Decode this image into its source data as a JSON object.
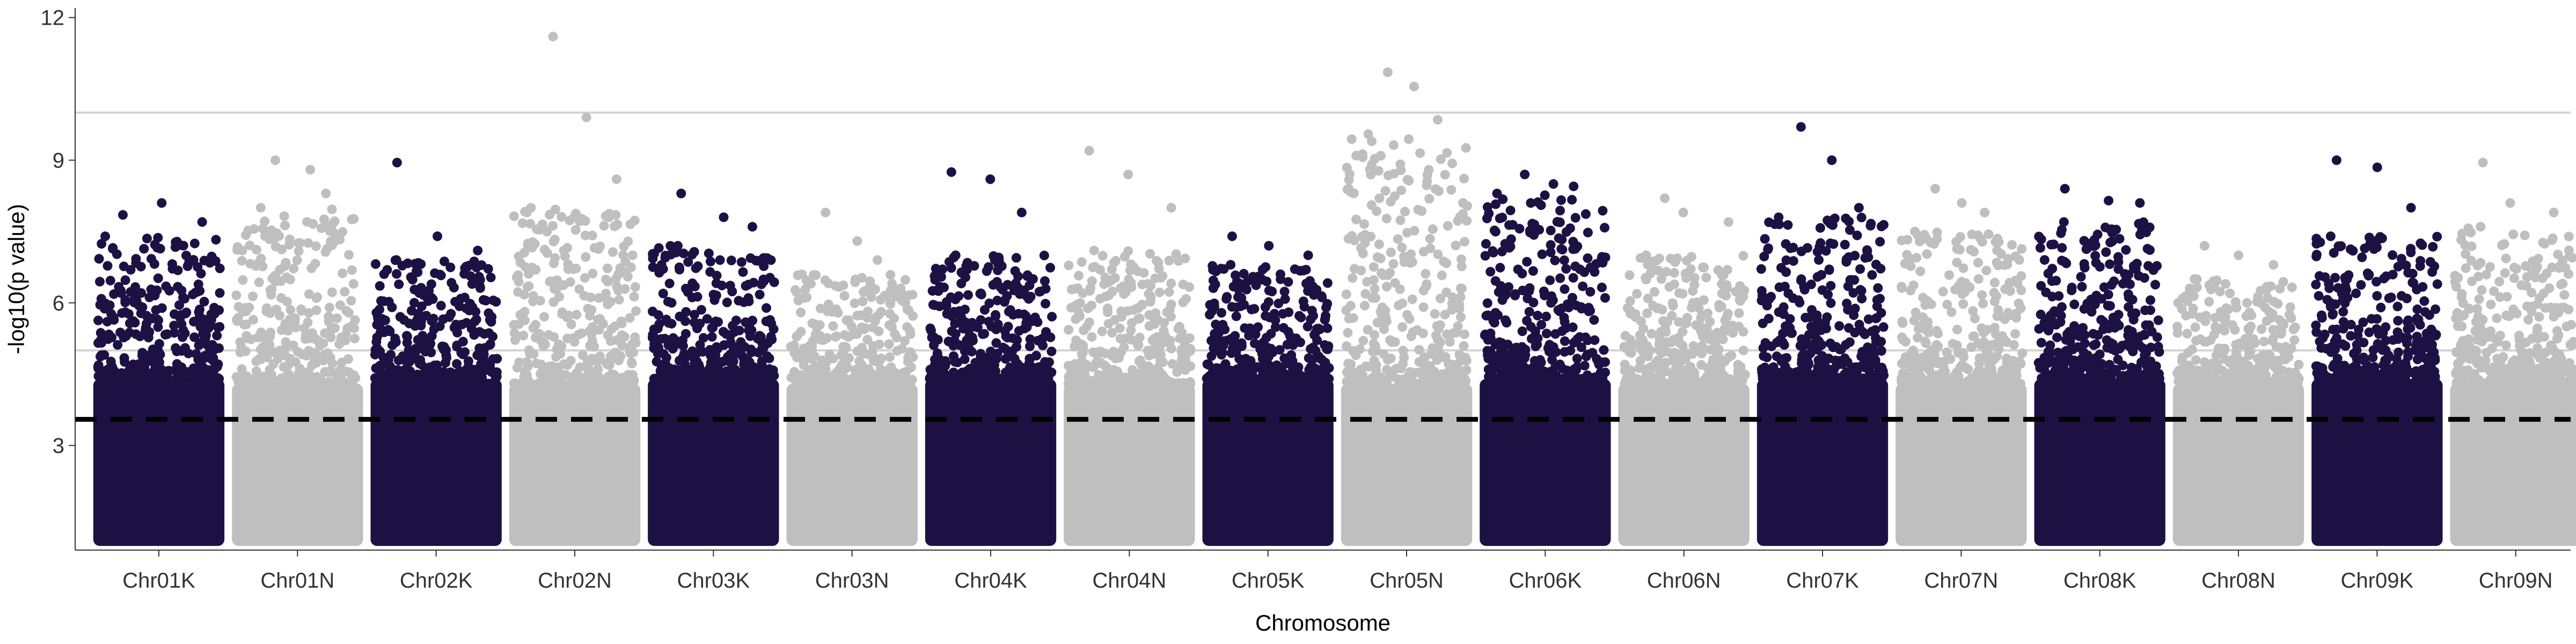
{
  "chart_data": {
    "type": "scatter",
    "subtype": "manhattan",
    "xlabel": "Chromosome",
    "ylabel": "-log10(p value)",
    "ylim": [
      0.8,
      12.2
    ],
    "yticks": [
      "3",
      "6",
      "9",
      "12"
    ],
    "categories": [
      "Chr01K",
      "Chr01N",
      "Chr02K",
      "Chr02N",
      "Chr03K",
      "Chr03N",
      "Chr04K",
      "Chr04N",
      "Chr05K",
      "Chr05N",
      "Chr06K",
      "Chr06N",
      "Chr07K",
      "Chr07N",
      "Chr08K",
      "Chr08N",
      "Chr09K",
      "Chr09N"
    ],
    "point_floor": 1.0,
    "colors": {
      "K": "#1d1144",
      "N": "#bfbfbf",
      "hline": "#d3d3d3",
      "threshold": "#000000"
    },
    "reference_lines": [
      {
        "y": 10.0,
        "style": "solid"
      },
      {
        "y": 5.0,
        "style": "solid"
      },
      {
        "y": 3.55,
        "style": "dashed"
      }
    ],
    "top_hits": [
      {
        "chromosome": "Chr01K",
        "values": [
          7.85,
          8.1,
          7.7,
          7.4
        ]
      },
      {
        "chromosome": "Chr01N",
        "values": [
          9.0,
          8.8,
          8.3,
          8.0
        ]
      },
      {
        "chromosome": "Chr02K",
        "values": [
          8.95,
          7.4,
          7.1,
          6.9
        ]
      },
      {
        "chromosome": "Chr02N",
        "values": [
          11.6,
          9.9,
          8.6,
          8.0
        ]
      },
      {
        "chromosome": "Chr03K",
        "values": [
          8.3,
          7.8,
          7.6,
          7.2
        ]
      },
      {
        "chromosome": "Chr03N",
        "values": [
          7.9,
          7.3,
          6.9,
          6.6
        ]
      },
      {
        "chromosome": "Chr04K",
        "values": [
          8.75,
          8.6,
          7.9,
          7.0
        ]
      },
      {
        "chromosome": "Chr04N",
        "values": [
          9.2,
          8.7,
          8.0,
          7.1
        ]
      },
      {
        "chromosome": "Chr05K",
        "values": [
          7.4,
          7.2,
          7.0,
          6.8
        ]
      },
      {
        "chromosome": "Chr05N",
        "values": [
          10.85,
          10.55,
          9.85,
          9.55
        ]
      },
      {
        "chromosome": "Chr06K",
        "values": [
          8.7,
          8.5,
          8.45,
          8.3
        ]
      },
      {
        "chromosome": "Chr06N",
        "values": [
          8.2,
          7.9,
          7.7,
          7.0
        ]
      },
      {
        "chromosome": "Chr07K",
        "values": [
          9.7,
          9.0,
          8.0,
          7.8
        ]
      },
      {
        "chromosome": "Chr07N",
        "values": [
          8.4,
          8.1,
          7.9,
          7.5
        ]
      },
      {
        "chromosome": "Chr08K",
        "values": [
          8.4,
          8.15,
          8.1,
          7.7
        ]
      },
      {
        "chromosome": "Chr08N",
        "values": [
          7.2,
          7.0,
          6.8,
          6.5
        ]
      },
      {
        "chromosome": "Chr09K",
        "values": [
          9.0,
          8.85,
          8.0,
          7.4
        ]
      },
      {
        "chromosome": "Chr09N",
        "values": [
          8.95,
          8.1,
          7.9,
          7.6
        ]
      }
    ],
    "grid": false,
    "legend": "none"
  }
}
